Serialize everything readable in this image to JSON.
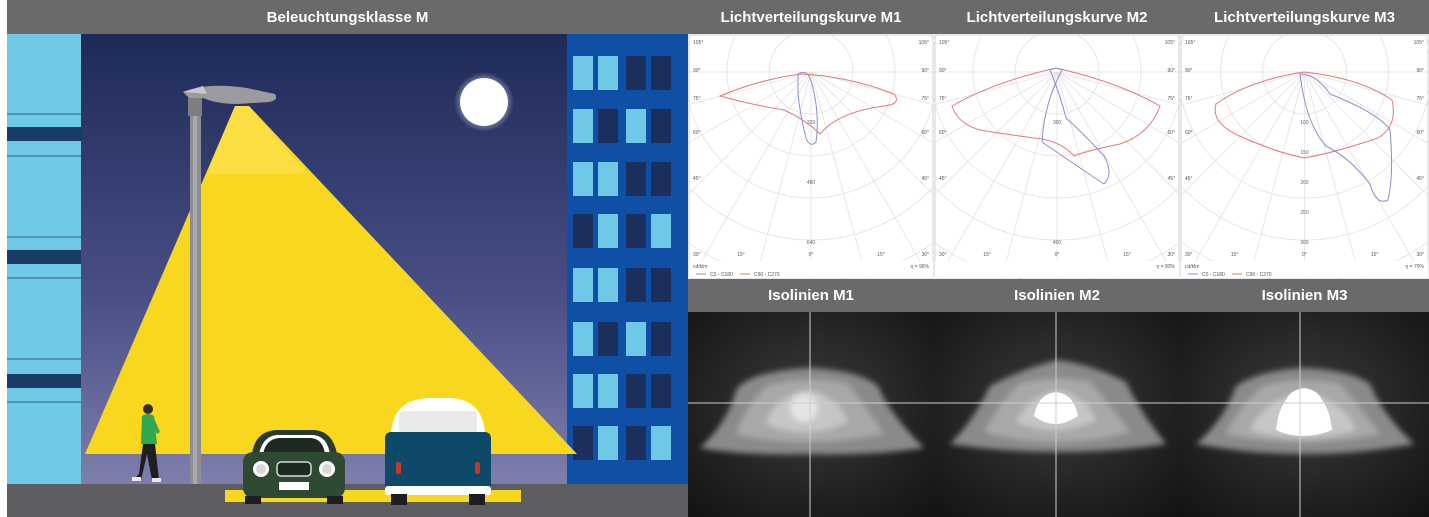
{
  "scene": {
    "title": "Beleuchtungsklasse M"
  },
  "curves": [
    {
      "title": "Lichtverteilungskurve M1",
      "unit": "cd/klm",
      "efficiency": "η = 96%",
      "legend_c0": "C0 - C180",
      "legend_c90": "C90 - C270",
      "radial_labels": [
        "320",
        "480",
        "640"
      ],
      "angles": {
        "top_left": "105°",
        "top_right": "105°",
        "a90_left": "90°",
        "a90_right": "90°",
        "a75_left": "75°",
        "a75_right": "75°",
        "a60_left": "60°",
        "a60_right": "60°",
        "a45_left": "45°",
        "a45_right": "45°",
        "a30_left": "30°",
        "a30_right": "30°",
        "a15_left": "15°",
        "a15_right": "15°",
        "a0": "0°"
      }
    },
    {
      "title": "Lichtverteilungskurve M2",
      "unit": "",
      "efficiency": "η = 83%",
      "legend_c0": "",
      "legend_c90": "",
      "radial_labels": [
        "300",
        "400"
      ],
      "angles": {
        "top_left": "105°",
        "top_right": "105°",
        "a90_left": "90°",
        "a90_right": "90°",
        "a75_left": "75°",
        "a75_right": "75°",
        "a60_left": "60°",
        "a60_right": "60°",
        "a45_left": "45°",
        "a45_right": "45°",
        "a30_left": "30°",
        "a30_right": "30°",
        "a15_left": "15°",
        "a15_right": "15°",
        "a0": "0°"
      }
    },
    {
      "title": "Lichtverteilungskurve M3",
      "unit": "cd/klm",
      "efficiency": "η = 79%",
      "legend_c0": "C0 - C180",
      "legend_c90": "C90 - C270",
      "radial_labels": [
        "100",
        "150",
        "200",
        "250",
        "300"
      ],
      "angles": {
        "top_left": "105°",
        "top_right": "105°",
        "a90_left": "90°",
        "a90_right": "90°",
        "a75_left": "75°",
        "a75_right": "75°",
        "a60_left": "60°",
        "a60_right": "60°",
        "a45_left": "45°",
        "a45_right": "45°",
        "a30_left": "30°",
        "a30_right": "30°",
        "a15_left": "15°",
        "a15_right": "15°",
        "a0": "0°"
      }
    }
  ],
  "isolines": [
    {
      "title": "Isolinien M1"
    },
    {
      "title": "Isolinien M2"
    },
    {
      "title": "Isolinien M3"
    }
  ],
  "colors": {
    "header_bg": "#6a6a6d",
    "sky_top": "#1d2a57",
    "sky_bottom": "#8787b2",
    "light_cone": "#f7d81e",
    "building_light": "#6ec8e6",
    "building_dark_blue": "#0f4fa5",
    "curve_c0": "#e07a7a",
    "curve_c90": "#8a8fd0"
  }
}
